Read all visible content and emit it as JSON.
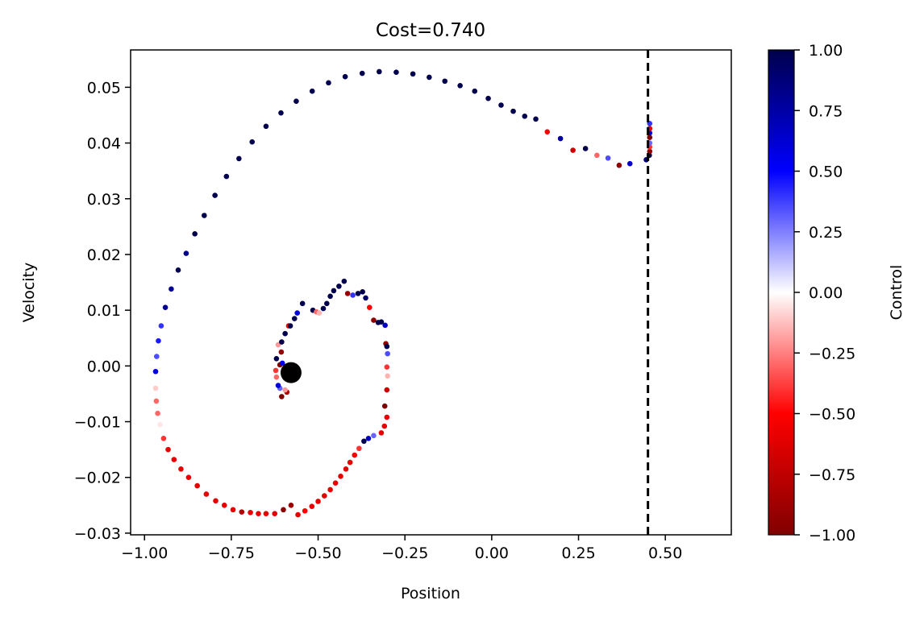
{
  "chart_data": {
    "type": "scatter",
    "title": "Cost=0.740",
    "xlabel": "Position",
    "ylabel": "Velocity",
    "xlim": [
      -1.04,
      0.69
    ],
    "ylim": [
      -0.0303,
      0.0567
    ],
    "xticks": [
      -1.0,
      -0.75,
      -0.5,
      -0.25,
      0.0,
      0.25,
      0.5
    ],
    "xtick_labels": [
      "−1.00",
      "−0.75",
      "−0.50",
      "−0.25",
      "0.00",
      "0.25",
      "0.50"
    ],
    "yticks": [
      -0.03,
      -0.02,
      -0.01,
      0.0,
      0.01,
      0.02,
      0.03,
      0.04,
      0.05
    ],
    "ytick_labels": [
      "−0.03",
      "−0.02",
      "−0.01",
      "0.00",
      "0.01",
      "0.02",
      "0.03",
      "0.04",
      "0.05"
    ],
    "goal_line_x": 0.45,
    "start_marker": {
      "x": -0.578,
      "y": -0.0012
    },
    "colorbar": {
      "label": "Control",
      "range": [
        -1.0,
        1.0
      ],
      "ticks": [
        1.0,
        0.75,
        0.5,
        0.25,
        0.0,
        -0.25,
        -0.5,
        -0.75,
        -1.0
      ],
      "tick_labels": [
        "1.00",
        "0.75",
        "0.50",
        "0.25",
        "0.00",
        "−0.25",
        "−0.50",
        "−0.75",
        "−1.00"
      ],
      "colormap": "seismic_r"
    },
    "points": [
      {
        "x": -0.59,
        "y": -0.0047,
        "c": -0.8
      },
      {
        "x": -0.595,
        "y": -0.0043,
        "c": -0.2
      },
      {
        "x": -0.605,
        "y": -0.0055,
        "c": -1.0
      },
      {
        "x": -0.61,
        "y": -0.004,
        "c": 0.3
      },
      {
        "x": -0.615,
        "y": -0.0035,
        "c": 0.6
      },
      {
        "x": -0.62,
        "y": -0.002,
        "c": -0.3
      },
      {
        "x": -0.622,
        "y": -0.0008,
        "c": -0.4
      },
      {
        "x": -0.61,
        "y": 0.0002,
        "c": -1.0
      },
      {
        "x": -0.603,
        "y": 0.0005,
        "c": 0.6
      },
      {
        "x": -0.606,
        "y": 0.0025,
        "c": -0.9
      },
      {
        "x": -0.615,
        "y": 0.0038,
        "c": -0.2
      },
      {
        "x": -0.62,
        "y": 0.0013,
        "c": 1.0
      },
      {
        "x": -0.605,
        "y": 0.0043,
        "c": 1.0
      },
      {
        "x": -0.595,
        "y": 0.0058,
        "c": 1.0
      },
      {
        "x": -0.585,
        "y": 0.0072,
        "c": -0.5
      },
      {
        "x": -0.58,
        "y": 0.0072,
        "c": 1.0
      },
      {
        "x": -0.568,
        "y": 0.0085,
        "c": 1.0
      },
      {
        "x": -0.56,
        "y": 0.0095,
        "c": 0.6
      },
      {
        "x": -0.545,
        "y": 0.0112,
        "c": 1.0
      },
      {
        "x": -0.515,
        "y": 0.01,
        "c": 1.0
      },
      {
        "x": -0.505,
        "y": 0.0097,
        "c": -0.3
      },
      {
        "x": -0.497,
        "y": 0.0095,
        "c": -0.15
      },
      {
        "x": -0.485,
        "y": 0.0103,
        "c": 1.0
      },
      {
        "x": -0.475,
        "y": 0.0112,
        "c": 1.0
      },
      {
        "x": -0.465,
        "y": 0.0125,
        "c": 1.0
      },
      {
        "x": -0.455,
        "y": 0.0135,
        "c": 1.0
      },
      {
        "x": -0.44,
        "y": 0.0143,
        "c": 1.0
      },
      {
        "x": -0.425,
        "y": 0.0152,
        "c": 1.0
      },
      {
        "x": -0.415,
        "y": 0.013,
        "c": -0.9
      },
      {
        "x": -0.4,
        "y": 0.0127,
        "c": 0.4
      },
      {
        "x": -0.385,
        "y": 0.013,
        "c": 1.0
      },
      {
        "x": -0.372,
        "y": 0.0133,
        "c": 1.0
      },
      {
        "x": -0.363,
        "y": 0.0122,
        "c": 0.9
      },
      {
        "x": -0.352,
        "y": 0.0105,
        "c": -0.5
      },
      {
        "x": -0.34,
        "y": 0.0082,
        "c": -0.95
      },
      {
        "x": -0.327,
        "y": 0.0078,
        "c": 1.0
      },
      {
        "x": -0.318,
        "y": 0.0079,
        "c": 1.0
      },
      {
        "x": -0.307,
        "y": 0.0073,
        "c": 0.65
      },
      {
        "x": -0.305,
        "y": 0.004,
        "c": -0.9
      },
      {
        "x": -0.302,
        "y": 0.0035,
        "c": 1.0
      },
      {
        "x": -0.3,
        "y": 0.0022,
        "c": 0.35
      },
      {
        "x": -0.302,
        "y": -0.0002,
        "c": -0.4
      },
      {
        "x": -0.3,
        "y": -0.0018,
        "c": -0.15
      },
      {
        "x": -0.302,
        "y": -0.0043,
        "c": -0.7
      },
      {
        "x": -0.308,
        "y": -0.0072,
        "c": -1.0
      },
      {
        "x": -0.302,
        "y": -0.0092,
        "c": -0.6
      },
      {
        "x": -0.309,
        "y": -0.0108,
        "c": -0.6
      },
      {
        "x": -0.318,
        "y": -0.012,
        "c": -0.6
      },
      {
        "x": -0.34,
        "y": -0.0125,
        "c": 0.3
      },
      {
        "x": -0.355,
        "y": -0.013,
        "c": 0.65
      },
      {
        "x": -0.368,
        "y": -0.0135,
        "c": 1.0
      },
      {
        "x": -0.382,
        "y": -0.0148,
        "c": -0.4
      },
      {
        "x": -0.395,
        "y": -0.016,
        "c": -0.5
      },
      {
        "x": -0.408,
        "y": -0.0173,
        "c": -0.6
      },
      {
        "x": -0.42,
        "y": -0.0185,
        "c": -0.6
      },
      {
        "x": -0.435,
        "y": -0.0198,
        "c": -0.6
      },
      {
        "x": -0.45,
        "y": -0.021,
        "c": -0.6
      },
      {
        "x": -0.465,
        "y": -0.0222,
        "c": -0.6
      },
      {
        "x": -0.482,
        "y": -0.0233,
        "c": -0.6
      },
      {
        "x": -0.5,
        "y": -0.0243,
        "c": -0.6
      },
      {
        "x": -0.518,
        "y": -0.0252,
        "c": -0.6
      },
      {
        "x": -0.538,
        "y": -0.026,
        "c": -0.5
      },
      {
        "x": -0.558,
        "y": -0.0267,
        "c": -0.6
      },
      {
        "x": -0.578,
        "y": -0.025,
        "c": -0.9
      },
      {
        "x": -0.6,
        "y": -0.0258,
        "c": -0.95
      },
      {
        "x": -0.625,
        "y": -0.0265,
        "c": -0.6
      },
      {
        "x": -0.65,
        "y": -0.0265,
        "c": -0.6
      },
      {
        "x": -0.672,
        "y": -0.0265,
        "c": -0.6
      },
      {
        "x": -0.695,
        "y": -0.0263,
        "c": -0.6
      },
      {
        "x": -0.72,
        "y": -0.0262,
        "c": -0.8
      },
      {
        "x": -0.745,
        "y": -0.0258,
        "c": -0.6
      },
      {
        "x": -0.77,
        "y": -0.025,
        "c": -0.6
      },
      {
        "x": -0.795,
        "y": -0.0242,
        "c": -0.6
      },
      {
        "x": -0.822,
        "y": -0.023,
        "c": -0.6
      },
      {
        "x": -0.848,
        "y": -0.0215,
        "c": -0.6
      },
      {
        "x": -0.873,
        "y": -0.02,
        "c": -0.6
      },
      {
        "x": -0.895,
        "y": -0.0185,
        "c": -0.6
      },
      {
        "x": -0.915,
        "y": -0.0168,
        "c": -0.6
      },
      {
        "x": -0.932,
        "y": -0.015,
        "c": -0.6
      },
      {
        "x": -0.945,
        "y": -0.013,
        "c": -0.4
      },
      {
        "x": -0.955,
        "y": -0.0105,
        "c": -0.05
      },
      {
        "x": -0.962,
        "y": -0.0085,
        "c": -0.3
      },
      {
        "x": -0.966,
        "y": -0.0063,
        "c": -0.3
      },
      {
        "x": -0.968,
        "y": -0.004,
        "c": -0.1
      },
      {
        "x": -0.968,
        "y": -0.001,
        "c": 0.55
      },
      {
        "x": -0.965,
        "y": 0.0017,
        "c": 0.35
      },
      {
        "x": -0.96,
        "y": 0.0045,
        "c": 0.45
      },
      {
        "x": -0.952,
        "y": 0.0072,
        "c": 0.4
      },
      {
        "x": -0.94,
        "y": 0.0105,
        "c": 0.8
      },
      {
        "x": -0.923,
        "y": 0.0138,
        "c": 0.8
      },
      {
        "x": -0.903,
        "y": 0.0172,
        "c": 1.0
      },
      {
        "x": -0.88,
        "y": 0.0202,
        "c": 0.85
      },
      {
        "x": -0.855,
        "y": 0.0237,
        "c": 1.0
      },
      {
        "x": -0.828,
        "y": 0.027,
        "c": 1.0
      },
      {
        "x": -0.797,
        "y": 0.0306,
        "c": 1.0
      },
      {
        "x": -0.764,
        "y": 0.034,
        "c": 1.0
      },
      {
        "x": -0.728,
        "y": 0.0372,
        "c": 1.0
      },
      {
        "x": -0.69,
        "y": 0.0402,
        "c": 1.0
      },
      {
        "x": -0.65,
        "y": 0.043,
        "c": 1.0
      },
      {
        "x": -0.607,
        "y": 0.0454,
        "c": 1.0
      },
      {
        "x": -0.563,
        "y": 0.0475,
        "c": 1.0
      },
      {
        "x": -0.517,
        "y": 0.0493,
        "c": 1.0
      },
      {
        "x": -0.47,
        "y": 0.0508,
        "c": 1.0
      },
      {
        "x": -0.422,
        "y": 0.0519,
        "c": 1.0
      },
      {
        "x": -0.373,
        "y": 0.0525,
        "c": 1.0
      },
      {
        "x": -0.324,
        "y": 0.0528,
        "c": 1.0
      },
      {
        "x": -0.275,
        "y": 0.0527,
        "c": 1.0
      },
      {
        "x": -0.227,
        "y": 0.0524,
        "c": 1.0
      },
      {
        "x": -0.18,
        "y": 0.0518,
        "c": 1.0
      },
      {
        "x": -0.135,
        "y": 0.0511,
        "c": 1.0
      },
      {
        "x": -0.091,
        "y": 0.0503,
        "c": 1.0
      },
      {
        "x": -0.049,
        "y": 0.0493,
        "c": 1.0
      },
      {
        "x": -0.01,
        "y": 0.048,
        "c": 1.0
      },
      {
        "x": 0.027,
        "y": 0.0468,
        "c": 1.0
      },
      {
        "x": 0.062,
        "y": 0.0457,
        "c": 1.0
      },
      {
        "x": 0.095,
        "y": 0.0448,
        "c": 1.0
      },
      {
        "x": 0.127,
        "y": 0.0443,
        "c": 1.0
      },
      {
        "x": 0.16,
        "y": 0.042,
        "c": -0.5
      },
      {
        "x": 0.198,
        "y": 0.0408,
        "c": 0.75
      },
      {
        "x": 0.234,
        "y": 0.0387,
        "c": -0.7
      },
      {
        "x": 0.27,
        "y": 0.039,
        "c": 1.0
      },
      {
        "x": 0.303,
        "y": 0.0378,
        "c": -0.3
      },
      {
        "x": 0.335,
        "y": 0.0373,
        "c": 0.35
      },
      {
        "x": 0.367,
        "y": 0.036,
        "c": -0.95
      },
      {
        "x": 0.398,
        "y": 0.0363,
        "c": 0.65
      },
      {
        "x": 0.427,
        "y": 0.0365,
        "c": 0.0
      },
      {
        "x": 0.445,
        "y": 0.037,
        "c": 0.85
      },
      {
        "x": 0.454,
        "y": 0.0378,
        "c": 1.0
      },
      {
        "x": 0.455,
        "y": 0.0385,
        "c": -0.95
      },
      {
        "x": 0.455,
        "y": 0.0393,
        "c": -0.4
      },
      {
        "x": 0.455,
        "y": 0.04,
        "c": 0.3
      },
      {
        "x": 0.455,
        "y": 0.041,
        "c": -1.0
      },
      {
        "x": 0.455,
        "y": 0.0418,
        "c": 0.6
      },
      {
        "x": 0.455,
        "y": 0.0426,
        "c": -0.6
      },
      {
        "x": 0.455,
        "y": 0.0435,
        "c": 0.4
      }
    ]
  }
}
